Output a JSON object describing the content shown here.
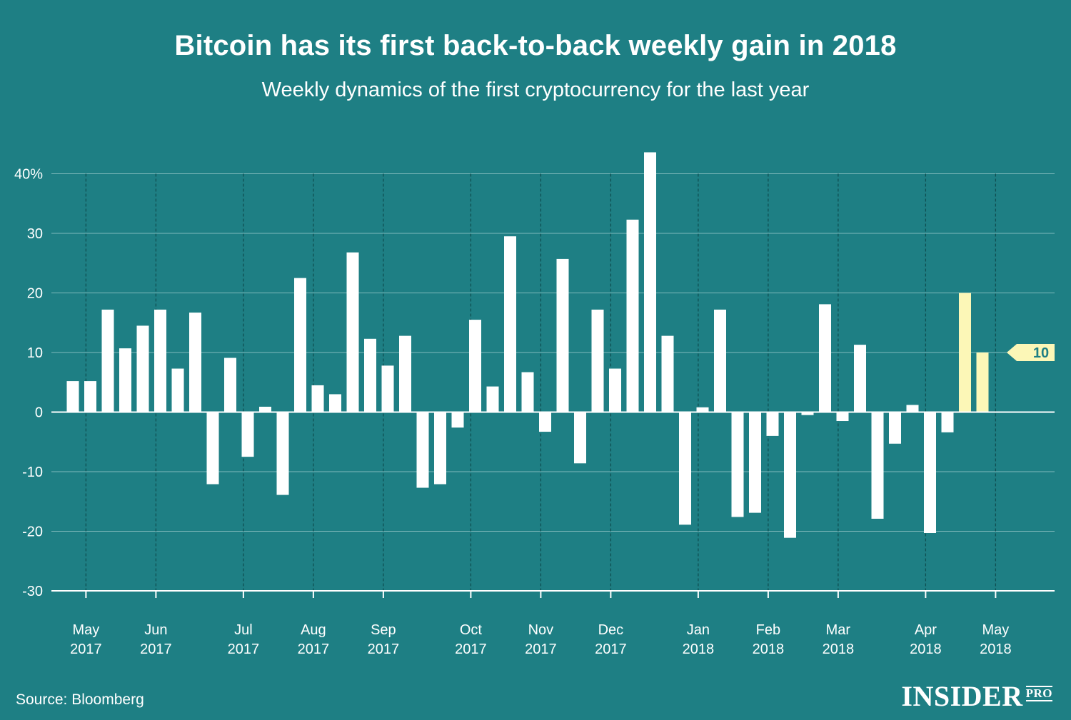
{
  "chart_data": {
    "type": "bar",
    "title": "Bitcoin has its first back-to-back weekly gain in 2018",
    "subtitle": "Weekly dynamics of the first cryptocurrency for the last year",
    "ylim": [
      -30,
      44
    ],
    "y_ticks": [
      {
        "value": 40,
        "label": "40%"
      },
      {
        "value": 30,
        "label": "30"
      },
      {
        "value": 20,
        "label": "20"
      },
      {
        "value": 10,
        "label": "10"
      },
      {
        "value": 0,
        "label": "0"
      },
      {
        "value": -10,
        "label": "-10"
      },
      {
        "value": -20,
        "label": "-20"
      },
      {
        "value": -30,
        "label": "-30"
      }
    ],
    "x_ticks": [
      {
        "week": 0.75,
        "month": "May",
        "year": "2017"
      },
      {
        "week": 4.75,
        "month": "Jun",
        "year": "2017"
      },
      {
        "week": 9.75,
        "month": "Jul",
        "year": "2017"
      },
      {
        "week": 13.75,
        "month": "Aug",
        "year": "2017"
      },
      {
        "week": 17.75,
        "month": "Sep",
        "year": "2017"
      },
      {
        "week": 22.75,
        "month": "Oct",
        "year": "2017"
      },
      {
        "week": 26.75,
        "month": "Nov",
        "year": "2017"
      },
      {
        "week": 30.75,
        "month": "Dec",
        "year": "2017"
      },
      {
        "week": 35.75,
        "month": "Jan",
        "year": "2018"
      },
      {
        "week": 39.75,
        "month": "Feb",
        "year": "2018"
      },
      {
        "week": 43.75,
        "month": "Mar",
        "year": "2018"
      },
      {
        "week": 48.75,
        "month": "Apr",
        "year": "2018"
      },
      {
        "week": 52.75,
        "month": "May",
        "year": "2018"
      }
    ],
    "values": [
      5.2,
      5.2,
      17.2,
      10.7,
      14.5,
      17.2,
      7.3,
      16.7,
      -12.1,
      9.1,
      -7.5,
      0.9,
      -13.9,
      22.5,
      4.5,
      3.0,
      26.8,
      12.3,
      7.8,
      12.8,
      -12.7,
      -12.1,
      -2.6,
      15.5,
      4.3,
      29.5,
      6.7,
      -3.3,
      25.7,
      -8.6,
      17.2,
      7.3,
      32.3,
      43.6,
      12.8,
      -18.9,
      0.8,
      17.2,
      -17.6,
      -16.9,
      -4.0,
      -21.1,
      -0.5,
      18.1,
      -1.5,
      11.3,
      -17.9,
      -5.3,
      1.2,
      -20.3,
      -3.4,
      20.0,
      10.0
    ],
    "highlighted_indices": [
      51,
      52
    ],
    "bar_color": "#ffffff",
    "highlight_color": "#fcf7b7",
    "annotation": {
      "label": "10",
      "value": 10
    },
    "grid": true
  },
  "source": "Source: Bloomberg",
  "logo": {
    "main": "INSIDER",
    "sub": "PRO"
  },
  "colors": {
    "background": "#1e7f84",
    "gridline": "#7fb9bb",
    "annotation_text": "#1e7f84"
  }
}
